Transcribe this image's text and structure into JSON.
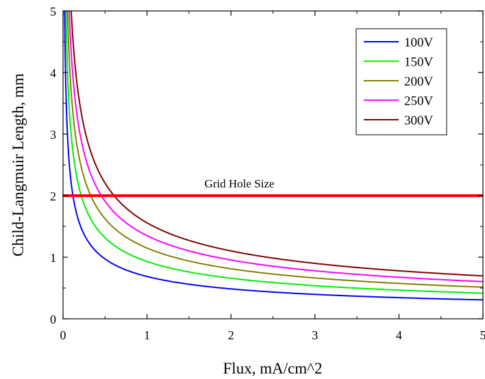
{
  "chart_data": {
    "type": "line",
    "title": "",
    "xlabel": "Flux, mA/cm^2",
    "ylabel": "Child-Langmuir Length, mm",
    "xlim": [
      0,
      5
    ],
    "ylim": [
      0,
      5
    ],
    "xticks": [
      "0",
      "1",
      "2",
      "3",
      "4",
      "5"
    ],
    "yticks": [
      "0",
      "1",
      "2",
      "3",
      "4",
      "5"
    ],
    "grid": false,
    "legend_position": "top-right",
    "series": [
      {
        "name": "100V",
        "color": "#0000ff",
        "k": 0.687,
        "exponent": 0.5
      },
      {
        "name": "150V",
        "color": "#00ee00",
        "k": 0.931,
        "exponent": 0.5
      },
      {
        "name": "200V",
        "color": "#808000",
        "k": 1.149,
        "exponent": 0.5
      },
      {
        "name": "250V",
        "color": "#ff00ff",
        "k": 1.35,
        "exponent": 0.5
      },
      {
        "name": "300V",
        "color": "#800000",
        "k": 1.559,
        "exponent": 0.5
      }
    ],
    "reference_line": {
      "label": "Grid Hole Size",
      "y": 2,
      "color": "#ff0000"
    }
  }
}
